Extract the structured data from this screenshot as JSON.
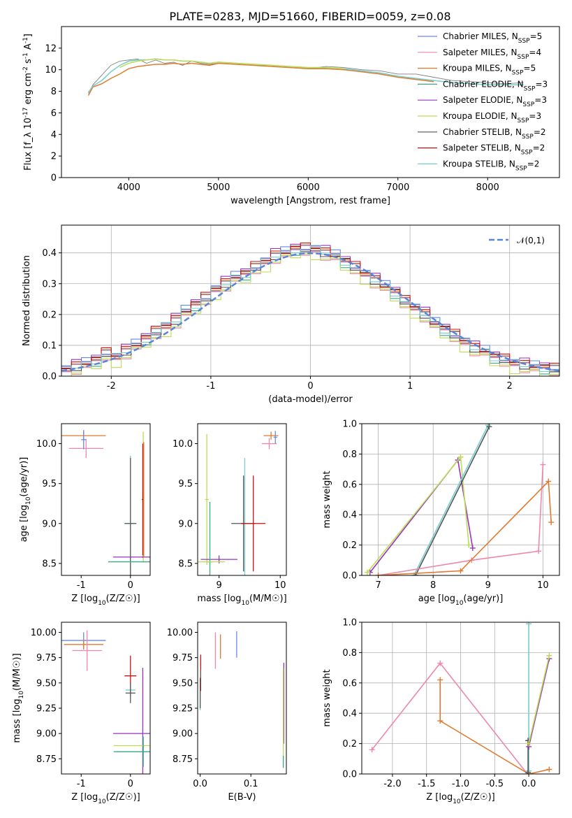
{
  "title": "PLATE=0283, MJD=51660, FIBERID=0059, z=0.08",
  "colors": {
    "chabrier_miles": "#6688ee",
    "salpeter_miles": "#ee88aa",
    "kroupa_miles": "#e07a30",
    "chabrier_elodie": "#33aa88",
    "salpeter_elodie": "#9933bb",
    "kroupa_elodie": "#bbdd55",
    "chabrier_stelib": "#555555",
    "salpeter_stelib": "#cc1111",
    "kroupa_stelib": "#77cccc",
    "data": "#808080",
    "normal_fit": "#5b84d6"
  },
  "chart_data": [
    {
      "id": "spectrum",
      "type": "line",
      "xlabel": "wavelength [Angstrom, rest frame]",
      "ylabel": "Flux [f_λ 10^-17 erg cm^-2 s^-1 A^-1]",
      "xlim": [
        3250,
        8800
      ],
      "ylim": [
        0,
        14
      ],
      "xticks": [
        4000,
        5000,
        6000,
        7000,
        8000
      ],
      "yticks": [
        0,
        2,
        4,
        6,
        8,
        10,
        12
      ],
      "legend": [
        "Chabrier MILES, N_SSP=5",
        "Salpeter MILES, N_SSP=4",
        "Kroupa MILES, N_SSP=5",
        "Chabrier ELODIE, N_SSP=3",
        "Salpeter ELODIE, N_SSP=3",
        "Kroupa ELODIE, N_SSP=3",
        "Chabrier STELIB, N_SSP=2",
        "Salpeter STELIB, N_SSP=2",
        "Kroupa STELIB, N_SSP=2"
      ],
      "series": [
        {
          "name": "data",
          "x": [
            3550,
            3600,
            3700,
            3800,
            3900,
            4000,
            4100,
            4200,
            4300,
            4400,
            4500,
            4600,
            4700,
            4800,
            4900,
            5000,
            5200,
            5400,
            5600,
            5800,
            6000,
            6200,
            6400,
            6600,
            6800,
            7000,
            7200,
            7400,
            7600,
            7800,
            8000,
            8200,
            8400
          ],
          "y": [
            7.8,
            8.6,
            9.5,
            10.4,
            10.8,
            10.9,
            11.0,
            10.6,
            10.9,
            10.6,
            10.7,
            10.4,
            10.8,
            10.6,
            10.5,
            10.6,
            10.5,
            10.4,
            10.4,
            10.3,
            10.1,
            10.3,
            10.2,
            10.0,
            9.9,
            9.6,
            9.6,
            9.3,
            9.0,
            8.9,
            8.8,
            8.7,
            8.8
          ]
        },
        {
          "name": "Kroupa MILES, N_SSP=5",
          "x": [
            3550,
            3600,
            3700,
            3800,
            3900,
            4000,
            4100,
            4200,
            4300,
            4400,
            4500,
            4600,
            4700,
            4800,
            4900,
            5000,
            5200,
            5400,
            5600,
            5800,
            6000,
            6200,
            6400,
            6600,
            6800,
            7000,
            7200,
            7400
          ],
          "y": [
            7.6,
            8.4,
            8.7,
            9.2,
            9.6,
            10.1,
            10.3,
            10.4,
            10.5,
            10.5,
            10.6,
            10.5,
            10.6,
            10.5,
            10.4,
            10.6,
            10.5,
            10.4,
            10.3,
            10.2,
            10.1,
            10.1,
            10.0,
            9.8,
            9.6,
            9.3,
            9.1,
            8.9
          ]
        },
        {
          "name": "Kroupa STELIB, N_SSP=2",
          "x": [
            3550,
            3600,
            3700,
            3800,
            3900,
            4000,
            4100,
            4200,
            4300,
            4400,
            4500,
            4600,
            4700,
            4800,
            4900,
            5000,
            5200,
            5400,
            5600,
            5800,
            6000,
            6200,
            6400,
            6600,
            6800,
            7000,
            7200,
            7400,
            7600,
            7800,
            8000,
            8200,
            8400
          ],
          "y": [
            7.9,
            8.5,
            9.0,
            9.8,
            10.4,
            10.8,
            10.9,
            10.9,
            11.0,
            10.9,
            10.9,
            10.8,
            10.8,
            10.7,
            10.6,
            10.7,
            10.6,
            10.5,
            10.4,
            10.3,
            10.2,
            10.2,
            10.1,
            9.9,
            9.7,
            9.4,
            9.2,
            9.0,
            8.8,
            8.7,
            8.6,
            8.6,
            8.6
          ]
        },
        {
          "name": "Kroupa ELODIE, N_SSP=3",
          "x": [
            3900,
            4000,
            4100,
            4200,
            4300,
            4400,
            4500,
            4600,
            4700,
            4800,
            4900,
            5000,
            5200,
            5400,
            5600,
            5800,
            6000,
            6200,
            6400
          ],
          "y": [
            10.2,
            10.6,
            10.8,
            10.9,
            11.0,
            10.9,
            10.9,
            10.8,
            10.8,
            10.7,
            10.6,
            10.7,
            10.6,
            10.5,
            10.4,
            10.3,
            10.2,
            10.2,
            10.1
          ]
        }
      ]
    },
    {
      "id": "residuals",
      "type": "step",
      "xlabel": "(data-model)/error",
      "ylabel": "Normed distribution",
      "xlim": [
        -2.5,
        2.5
      ],
      "ylim": [
        0,
        0.49
      ],
      "xticks": [
        -2,
        -1,
        0,
        1,
        2
      ],
      "yticks": [
        0.0,
        0.1,
        0.2,
        0.3,
        0.4
      ],
      "grid": true,
      "legend": [
        "𝒩(0,1)"
      ],
      "bin_edges": [
        -2.5,
        -2.4,
        -2.3,
        -2.2,
        -2.1,
        -2.0,
        -1.9,
        -1.8,
        -1.7,
        -1.6,
        -1.5,
        -1.4,
        -1.3,
        -1.2,
        -1.1,
        -1.0,
        -0.9,
        -0.8,
        -0.7,
        -0.6,
        -0.5,
        -0.4,
        -0.3,
        -0.2,
        -0.1,
        0.0,
        0.1,
        0.2,
        0.3,
        0.4,
        0.5,
        0.6,
        0.7,
        0.8,
        0.9,
        1.0,
        1.1,
        1.2,
        1.3,
        1.4,
        1.5,
        1.6,
        1.7,
        1.8,
        1.9,
        2.0,
        2.1,
        2.2,
        2.3,
        2.4,
        2.5
      ],
      "histogram": [
        0.02,
        0.03,
        0.04,
        0.05,
        0.07,
        0.06,
        0.08,
        0.1,
        0.12,
        0.14,
        0.16,
        0.18,
        0.21,
        0.23,
        0.25,
        0.28,
        0.3,
        0.32,
        0.33,
        0.35,
        0.37,
        0.39,
        0.4,
        0.41,
        0.41,
        0.41,
        0.4,
        0.39,
        0.37,
        0.35,
        0.33,
        0.31,
        0.29,
        0.27,
        0.24,
        0.22,
        0.2,
        0.17,
        0.15,
        0.13,
        0.11,
        0.09,
        0.08,
        0.06,
        0.05,
        0.04,
        0.035,
        0.03,
        0.025,
        0.02
      ],
      "normal_curve": {
        "mean": 0,
        "std": 1
      }
    },
    {
      "id": "age-vs-Z",
      "type": "errorbar",
      "xlabel": "Z [log10(Z/Z☉)]",
      "ylabel": "age  [log10(age/yr)]",
      "xlim": [
        -1.4,
        0.4
      ],
      "ylim": [
        8.35,
        10.25
      ],
      "xticks": [
        -1,
        0
      ],
      "yticks": [
        8.5,
        9.0,
        9.5,
        10.0
      ],
      "points": [
        {
          "series": "Kroupa MILES",
          "x": -0.95,
          "y": 10.1,
          "xerr": 0.45,
          "yerr": 0.06
        },
        {
          "series": "Salpeter MILES",
          "x": -0.9,
          "y": 9.94,
          "xerr": 0.35,
          "yerr": 0.12
        },
        {
          "series": "Chabrier MILES",
          "x": -0.95,
          "y": 10.05,
          "xerr": 0.05,
          "yerr": 0.12
        },
        {
          "series": "Kroupa STELIB",
          "x": 0.0,
          "y": 9.0,
          "xerr": 0.12,
          "yerr": 0.85
        },
        {
          "series": "Chabrier STELIB",
          "x": 0.0,
          "y": 9.0,
          "xerr": 0.12,
          "yerr": 0.82
        },
        {
          "series": "Kroupa ELODIE",
          "x": 0.26,
          "y": 9.33,
          "xerr": 0.02,
          "yerr": 0.82
        },
        {
          "series": "Salpeter ELODIE",
          "x": 0.25,
          "y": 8.58,
          "xerr": 0.6,
          "yerr": 0.01
        },
        {
          "series": "Chabrier ELODIE",
          "x": 0.0,
          "y": 8.52,
          "xerr": 0.45,
          "yerr": 0.01
        },
        {
          "series": "Salpeter STELIB",
          "x": 0.25,
          "y": 9.3,
          "xerr": 0.02,
          "yerr": 0.7
        },
        {
          "series": "Kroupa MILES",
          "x": 0.27,
          "y": 9.3,
          "xerr": 0.01,
          "yerr": 0.72
        }
      ]
    },
    {
      "id": "age-vs-mass",
      "type": "errorbar",
      "xlabel": "mass [log10(M/M☉)]",
      "ylabel": "",
      "xlim": [
        8.65,
        10.1
      ],
      "ylim": [
        8.35,
        10.25
      ],
      "xticks": [
        9,
        10
      ],
      "yticks": [
        8.5,
        9.0,
        9.5,
        10.0
      ],
      "points": [
        {
          "series": "Kroupa MILES",
          "x": 9.85,
          "y": 10.1,
          "xerr": 0.12,
          "yerr": 0.05
        },
        {
          "series": "Salpeter MILES",
          "x": 9.82,
          "y": 10.0,
          "xerr": 0.12,
          "yerr": 0.07
        },
        {
          "series": "Chabrier MILES",
          "x": 9.92,
          "y": 10.08,
          "xerr": 0.03,
          "yerr": 0.08
        },
        {
          "series": "Kroupa STELIB",
          "x": 9.42,
          "y": 9.0,
          "xerr": 0.06,
          "yerr": 0.82
        },
        {
          "series": "Chabrier STELIB",
          "x": 9.4,
          "y": 9.0,
          "xerr": 0.2,
          "yerr": 0.6
        },
        {
          "series": "Salpeter STELIB",
          "x": 9.56,
          "y": 9.0,
          "xerr": 0.2,
          "yerr": 0.6
        },
        {
          "series": "Kroupa ELODIE",
          "x": 8.8,
          "y": 9.3,
          "xerr": 0.03,
          "yerr": 0.82
        },
        {
          "series": "Salpeter ELODIE",
          "x": 9.0,
          "y": 8.55,
          "xerr": 0.3,
          "yerr": 0.05
        },
        {
          "series": "Chabrier ELODIE",
          "x": 8.85,
          "y": 8.52,
          "xerr": 0.05,
          "yerr": 0.75
        },
        {
          "series": "Kroupa ELODIE",
          "x": 8.8,
          "y": 8.52,
          "xerr": 0.3,
          "yerr": 0.01
        }
      ]
    },
    {
      "id": "weight-vs-age",
      "type": "line",
      "xlabel": "age  [log10(age/yr)]",
      "ylabel": "mass weight",
      "xlim": [
        6.7,
        10.3
      ],
      "ylim": [
        0,
        1.0
      ],
      "xticks": [
        7,
        8,
        9,
        10
      ],
      "yticks": [
        0.0,
        0.2,
        0.4,
        0.6,
        0.8,
        1.0
      ],
      "grid": true,
      "series": [
        {
          "name": "Salpeter ELODIE",
          "color_key": "salpeter_elodie",
          "x": [
            6.85,
            8.45,
            8.72
          ],
          "y": [
            0.02,
            0.76,
            0.18
          ]
        },
        {
          "name": "Kroupa ELODIE",
          "color_key": "kroupa_elodie",
          "x": [
            6.8,
            8.5,
            8.65
          ],
          "y": [
            0.02,
            0.78,
            0.2
          ]
        },
        {
          "name": "Kroupa STELIB",
          "color_key": "kroupa_stelib",
          "x": [
            7.65,
            9.0
          ],
          "y": [
            0.0,
            0.99
          ]
        },
        {
          "name": "Chabrier STELIB",
          "color_key": "chabrier_stelib",
          "x": [
            7.68,
            9.02
          ],
          "y": [
            0.0,
            0.98
          ]
        },
        {
          "name": "Salpeter MILES",
          "color_key": "salpeter_miles",
          "x": [
            7.0,
            8.7,
            9.92,
            10.0
          ],
          "y": [
            0.0,
            0.1,
            0.16,
            0.73
          ]
        },
        {
          "name": "Kroupa MILES",
          "color_key": "kroupa_miles",
          "x": [
            7.0,
            8.5,
            10.1,
            10.15
          ],
          "y": [
            0.0,
            0.03,
            0.62,
            0.35
          ]
        }
      ]
    },
    {
      "id": "mass-vs-Z",
      "type": "errorbar",
      "xlabel": "Z [log10(Z/Z☉)]",
      "ylabel": "mass [log10(M/M☉)]",
      "xlim": [
        -1.4,
        0.4
      ],
      "ylim": [
        8.6,
        10.1
      ],
      "xticks": [
        -1,
        0
      ],
      "yticks": [
        8.75,
        9.0,
        9.25,
        9.5,
        9.75,
        10.0
      ],
      "points": [
        {
          "series": "Chabrier MILES",
          "x": -0.95,
          "y": 9.92,
          "xerr": 0.45,
          "yerr": 0.08
        },
        {
          "series": "Kroupa MILES",
          "x": -0.95,
          "y": 9.88,
          "xerr": 0.4,
          "yerr": 0.05
        },
        {
          "series": "Salpeter MILES",
          "x": -0.88,
          "y": 9.82,
          "xerr": 0.3,
          "yerr": 0.2
        },
        {
          "series": "Salpeter STELIB",
          "x": 0.0,
          "y": 9.57,
          "xerr": 0.12,
          "yerr": 0.2
        },
        {
          "series": "Kroupa STELIB",
          "x": 0.0,
          "y": 9.43,
          "xerr": 0.1,
          "yerr": 0.05
        },
        {
          "series": "Chabrier STELIB",
          "x": 0.0,
          "y": 9.4,
          "xerr": 0.1,
          "yerr": 0.1
        },
        {
          "series": "Salpeter ELODIE",
          "x": 0.25,
          "y": 9.0,
          "xerr": 0.6,
          "yerr": 0.65
        },
        {
          "series": "Kroupa ELODIE",
          "x": 0.26,
          "y": 8.88,
          "xerr": 0.6,
          "yerr": 0.02
        },
        {
          "series": "Chabrier ELODIE",
          "x": 0.26,
          "y": 8.82,
          "xerr": 0.6,
          "yerr": 0.15
        }
      ]
    },
    {
      "id": "mass-vs-EBV",
      "type": "errorbar",
      "xlabel": "E(B-V)",
      "ylabel": "",
      "xlim": [
        -0.005,
        0.17
      ],
      "ylim": [
        8.6,
        10.1
      ],
      "xticks": [
        0.0,
        0.1
      ],
      "yticks": [
        8.75,
        9.0,
        9.25,
        9.5,
        9.75,
        10.0
      ],
      "points": [
        {
          "series": "Salpeter MILES",
          "x": 0.03,
          "y": 9.82,
          "xerr": 0.0,
          "yerr": 0.18
        },
        {
          "series": "Kroupa MILES",
          "x": 0.04,
          "y": 9.86,
          "xerr": 0.0,
          "yerr": 0.12
        },
        {
          "series": "Chabrier MILES",
          "x": 0.072,
          "y": 9.88,
          "xerr": 0.0,
          "yerr": 0.13
        },
        {
          "series": "Salpeter STELIB",
          "x": 0.001,
          "y": 9.6,
          "xerr": 0.0,
          "yerr": 0.18
        },
        {
          "series": "Kroupa STELIB",
          "x": 0.0,
          "y": 9.43,
          "xerr": 0.0,
          "yerr": 0.2
        },
        {
          "series": "Chabrier STELIB",
          "x": 0.0,
          "y": 9.4,
          "xerr": 0.0,
          "yerr": 0.15
        },
        {
          "series": "Salpeter ELODIE",
          "x": 0.165,
          "y": 9.3,
          "xerr": 0.0,
          "yerr": 0.4
        },
        {
          "series": "Kroupa ELODIE",
          "x": 0.164,
          "y": 9.2,
          "xerr": 0.0,
          "yerr": 0.45
        },
        {
          "series": "Chabrier ELODIE",
          "x": 0.164,
          "y": 8.72,
          "xerr": 0.0,
          "yerr": 0.06
        }
      ]
    },
    {
      "id": "weight-vs-Z",
      "type": "line",
      "xlabel": "Z [log10(Z/Z☉)]",
      "ylabel": "mass weight",
      "xlim": [
        -2.45,
        0.45
      ],
      "ylim": [
        0,
        1.0
      ],
      "xticks": [
        -2.0,
        -1.5,
        -1.0,
        -0.5,
        0.0
      ],
      "yticks": [
        0.0,
        0.2,
        0.4,
        0.6,
        0.8,
        1.0
      ],
      "grid": true,
      "series": [
        {
          "name": "Salpeter MILES",
          "color_key": "salpeter_miles",
          "x": [
            -2.3,
            -1.3,
            -0.02
          ],
          "y": [
            0.16,
            0.73,
            0.0
          ]
        },
        {
          "name": "Kroupa MILES",
          "color_key": "kroupa_miles",
          "x": [
            -1.3,
            -1.3,
            0.0,
            0.3
          ],
          "y": [
            0.62,
            0.35,
            0.0,
            0.03
          ]
        },
        {
          "name": "Kroupa STELIB",
          "color_key": "kroupa_stelib",
          "x": [
            0.0,
            0.0
          ],
          "y": [
            0.02,
            0.99
          ]
        },
        {
          "name": "Chabrier STELIB",
          "color_key": "chabrier_stelib",
          "x": [
            -0.01,
            -0.01
          ],
          "y": [
            0.01,
            0.22
          ]
        },
        {
          "name": "Salpeter ELODIE",
          "color_key": "salpeter_elodie",
          "x": [
            0.0,
            0.3
          ],
          "y": [
            0.18,
            0.76
          ]
        },
        {
          "name": "Kroupa ELODIE",
          "color_key": "kroupa_elodie",
          "x": [
            0.0,
            0.3
          ],
          "y": [
            0.2,
            0.78
          ]
        }
      ]
    }
  ]
}
